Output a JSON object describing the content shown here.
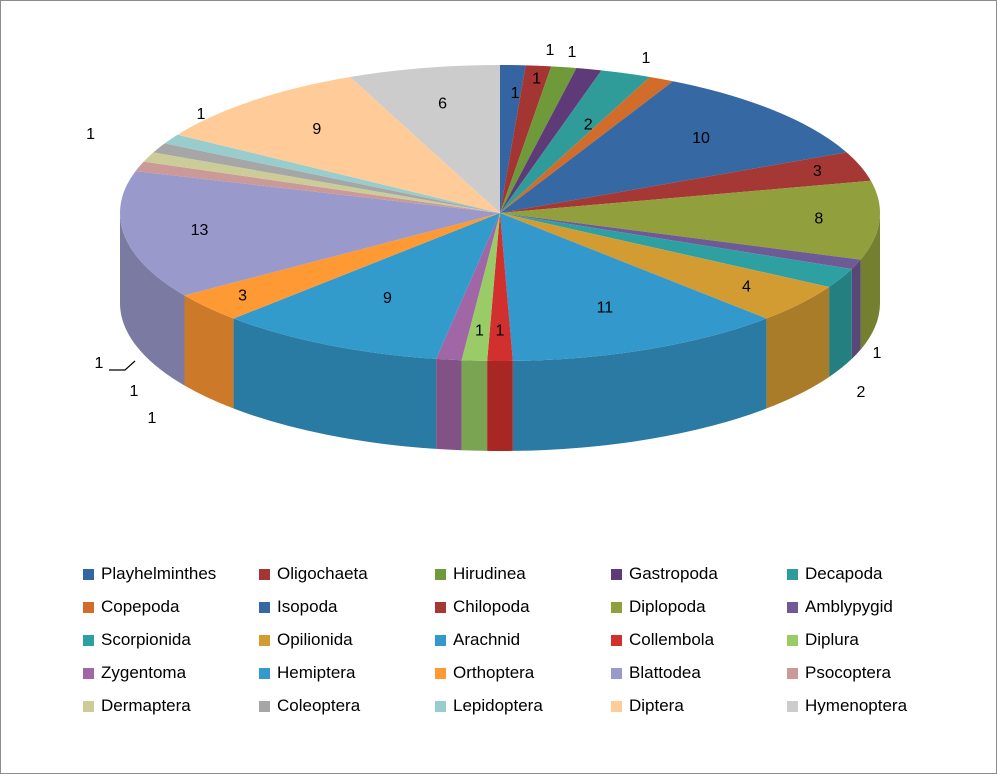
{
  "chart_data": {
    "type": "pie",
    "title": "",
    "legend_position": "bottom",
    "categories": [
      "Playhelminthes",
      "Oligochaeta",
      "Hirudinea",
      "Gastropoda",
      "Decapoda",
      "Copepoda",
      "Isopoda",
      "Chilopoda",
      "Diplopoda",
      "Amblypygid",
      "Scorpionida",
      "Opilionida",
      "Arachnid",
      "Collembola",
      "Diplura",
      "Zygentoma",
      "Hemiptera",
      "Orthoptera",
      "Blattodea",
      "Psocoptera",
      "Dermaptera",
      "Coleoptera",
      "Lepidoptera",
      "Diptera",
      "Hymenoptera"
    ],
    "series": [
      {
        "values": [
          1,
          1,
          1,
          1,
          2,
          1,
          10,
          3,
          8,
          1,
          2,
          4,
          11,
          1,
          1,
          1,
          9,
          3,
          13,
          1,
          1,
          1,
          1,
          9,
          6
        ]
      }
    ],
    "label_texts": [
      "1",
      "1",
      "1",
      "1",
      "2",
      "1",
      "10",
      "3",
      "8",
      "1",
      "2",
      "4",
      "11",
      "1",
      "1",
      "1",
      "9",
      "3",
      "13",
      "1",
      "1",
      "1",
      "1",
      "9",
      "6"
    ],
    "colors": [
      "#3464A2",
      "#A33532",
      "#6E9A3A",
      "#5E3A78",
      "#2F9C9A",
      "#D26C2A",
      "#3668A4",
      "#A53734",
      "#91A03C",
      "#6E5B96",
      "#2EA0A2",
      "#D39C33",
      "#3399CC",
      "#D2302E",
      "#99CC66",
      "#A066A6",
      "#339ACC",
      "#FF9933",
      "#9999CC",
      "#CC9999",
      "#CCCC99",
      "#A6A6A6",
      "#99CCCC",
      "#FFCC99",
      "#CCCCCC"
    ],
    "side_colors": [
      "#2A4F82",
      "#832A28",
      "#58792E",
      "#4A2E60",
      "#257D7B",
      "#A85622",
      "#2A5383",
      "#842C2A",
      "#747F30",
      "#584878",
      "#247F81",
      "#A97C29",
      "#2A7AA3",
      "#A82624",
      "#7AA352",
      "#805285",
      "#2A7BA3",
      "#CC7A29",
      "#7A7AA3",
      "#A37A7A",
      "#A3A37A",
      "#858585",
      "#7AA3A3",
      "#CCA37A",
      "#A3A3A3"
    ]
  }
}
